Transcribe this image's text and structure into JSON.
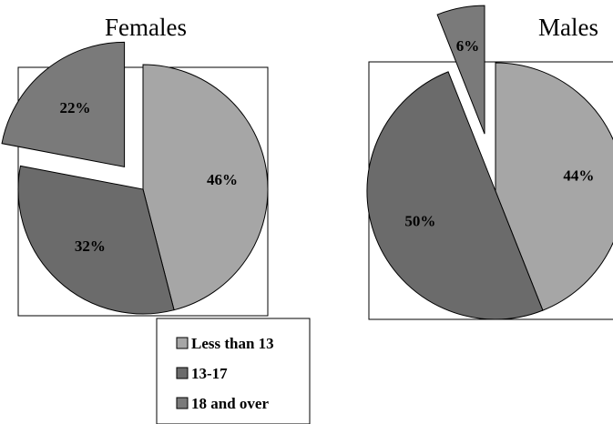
{
  "chart_data": [
    {
      "type": "pie",
      "title": "Females",
      "categories": [
        "Less than 13",
        "13-17",
        "18 and over"
      ],
      "values": [
        46,
        32,
        22
      ],
      "labels": [
        "46%",
        "32%",
        "22%"
      ],
      "exploded": [
        false,
        false,
        true
      ]
    },
    {
      "type": "pie",
      "title": "Males",
      "categories": [
        "Less than 13",
        "13-17",
        "18 and over"
      ],
      "values": [
        44,
        50,
        6
      ],
      "labels": [
        "44%",
        "50%",
        "6%"
      ],
      "exploded": [
        false,
        false,
        true
      ]
    }
  ],
  "legend": {
    "placement": "bottom-center",
    "items": [
      {
        "label": "Less than 13",
        "color": "#a6a6a6"
      },
      {
        "label": "13-17",
        "color": "#6b6b6b"
      },
      {
        "label": "18 and over",
        "color": "#7a7a7a"
      }
    ]
  },
  "colors": [
    "#a6a6a6",
    "#6b6b6b",
    "#7a7a7a"
  ]
}
